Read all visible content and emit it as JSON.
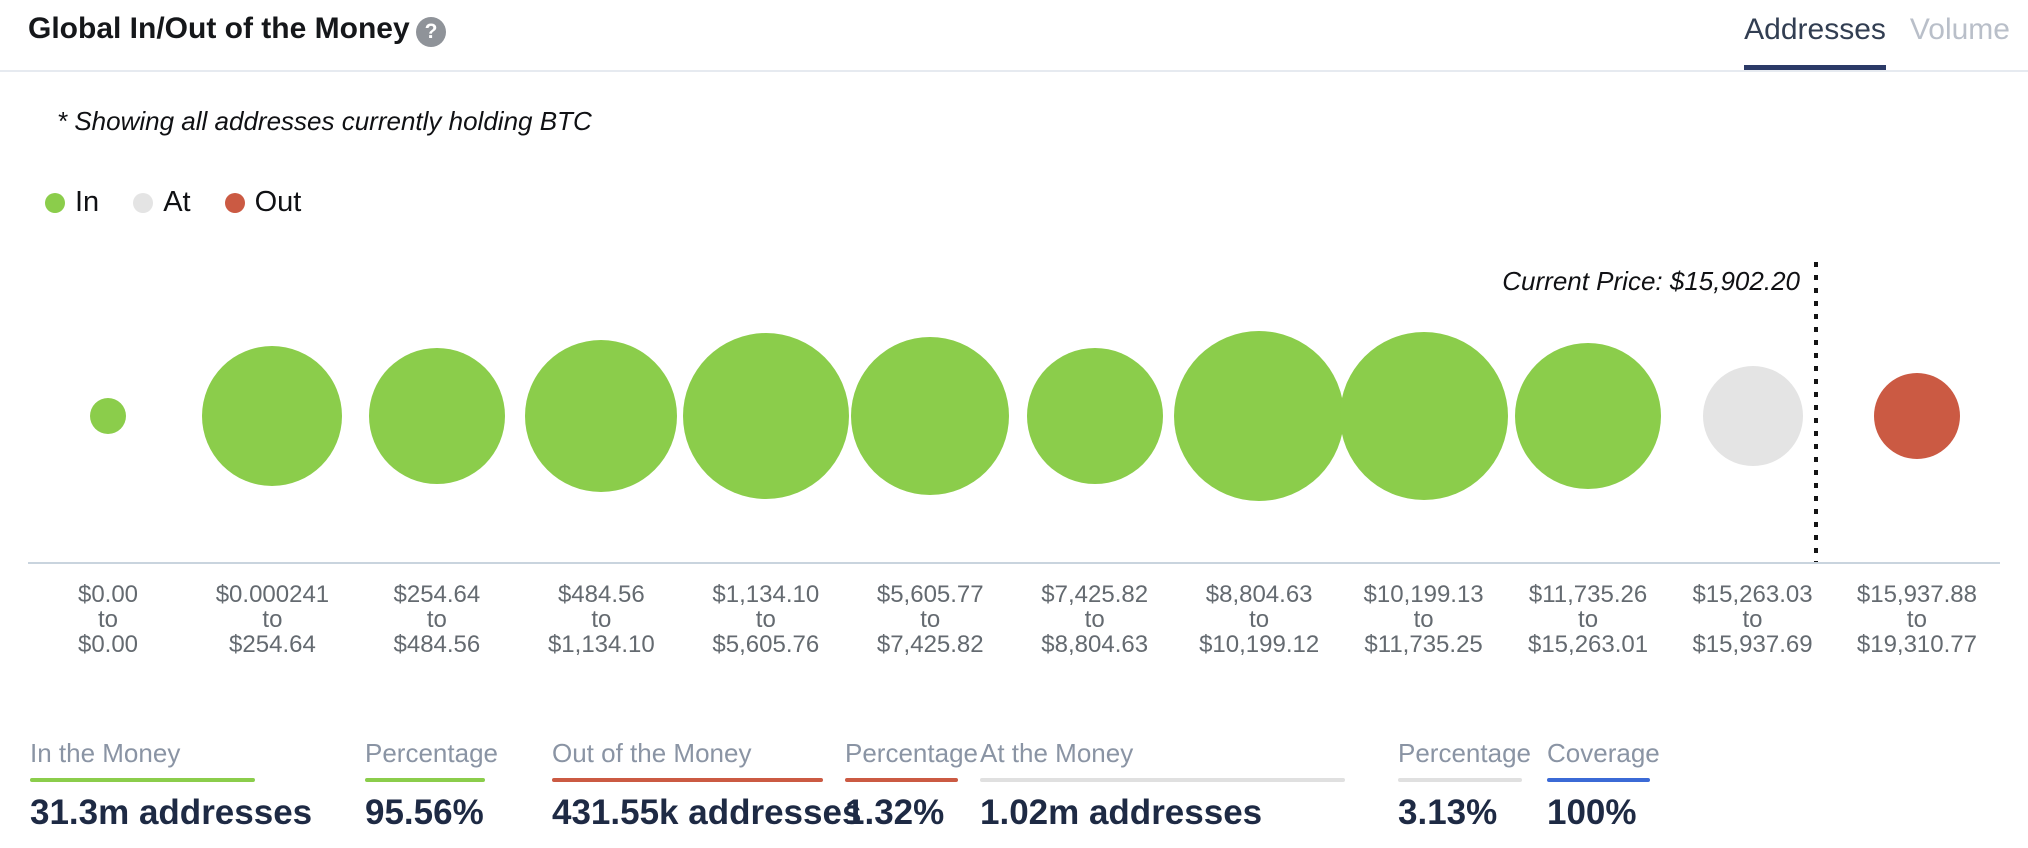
{
  "header": {
    "title": "Global In/Out of the Money",
    "help_icon": "?",
    "tabs": [
      {
        "label": "Addresses",
        "active": true
      },
      {
        "label": "Volume",
        "active": false
      }
    ]
  },
  "note": "* Showing all addresses currently holding BTC",
  "legend": {
    "items": [
      {
        "label": "In",
        "status": "in"
      },
      {
        "label": "At",
        "status": "at"
      },
      {
        "label": "Out",
        "status": "out"
      }
    ]
  },
  "colors": {
    "in": "#8bcd4b",
    "at": "#e4e4e4",
    "out": "#cb5a43",
    "coverage_underline": "#3b6ad6",
    "at_underline": "#e0e0e0",
    "tab_underline": "#2b3a67"
  },
  "chart_data": {
    "type": "bubble",
    "title": "Global In/Out of the Money",
    "note": "* Showing all addresses currently holding BTC",
    "legend": [
      "In",
      "At",
      "Out"
    ],
    "current_price_label": "Current Price: $15,902.20",
    "current_price": 15902.2,
    "price_line_between_categories": [
      "$15,263.03 to $15,937.69",
      "$15,937.88 to $19,310.77"
    ],
    "points": [
      {
        "range_from": "$0.00",
        "range_to": "$0.00",
        "status": "in",
        "radius_px": 18
      },
      {
        "range_from": "$0.000241",
        "range_to": "$254.64",
        "status": "in",
        "radius_px": 70
      },
      {
        "range_from": "$254.64",
        "range_to": "$484.56",
        "status": "in",
        "radius_px": 68
      },
      {
        "range_from": "$484.56",
        "range_to": "$1,134.10",
        "status": "in",
        "radius_px": 76
      },
      {
        "range_from": "$1,134.10",
        "range_to": "$5,605.76",
        "status": "in",
        "radius_px": 83
      },
      {
        "range_from": "$5,605.77",
        "range_to": "$7,425.82",
        "status": "in",
        "radius_px": 79
      },
      {
        "range_from": "$7,425.82",
        "range_to": "$8,804.63",
        "status": "in",
        "radius_px": 68
      },
      {
        "range_from": "$8,804.63",
        "range_to": "$10,199.12",
        "status": "in",
        "radius_px": 85
      },
      {
        "range_from": "$10,199.13",
        "range_to": "$11,735.25",
        "status": "in",
        "radius_px": 84
      },
      {
        "range_from": "$11,735.26",
        "range_to": "$15,263.01",
        "status": "in",
        "radius_px": 73
      },
      {
        "range_from": "$15,263.03",
        "range_to": "$15,937.69",
        "status": "at",
        "radius_px": 50
      },
      {
        "range_from": "$15,937.88",
        "range_to": "$19,310.77",
        "status": "out",
        "radius_px": 43
      }
    ],
    "axis_mid_word": "to",
    "summary": {
      "in_the_money": "31.3m addresses",
      "in_percentage": "95.56%",
      "out_of_the_money": "431.55k addresses",
      "out_percentage": "1.32%",
      "at_the_money": "1.02m addresses",
      "at_percentage": "3.13%",
      "coverage": "100%"
    }
  },
  "stats": {
    "columns": [
      {
        "label": "In the Money",
        "value": "31.3m addresses",
        "underline": "in"
      },
      {
        "label": "Percentage",
        "value": "95.56%",
        "underline": "in"
      },
      {
        "label": "Out of the Money",
        "value": "431.55k addresses",
        "underline": "out"
      },
      {
        "label": "Percentage",
        "value": "1.32%",
        "underline": "out"
      },
      {
        "label": "At the Money",
        "value": "1.02m addresses",
        "underline": "at_underline"
      },
      {
        "label": "Percentage",
        "value": "3.13%",
        "underline": "at_underline"
      },
      {
        "label": "Coverage",
        "value": "100%",
        "underline": "coverage_underline"
      }
    ]
  }
}
